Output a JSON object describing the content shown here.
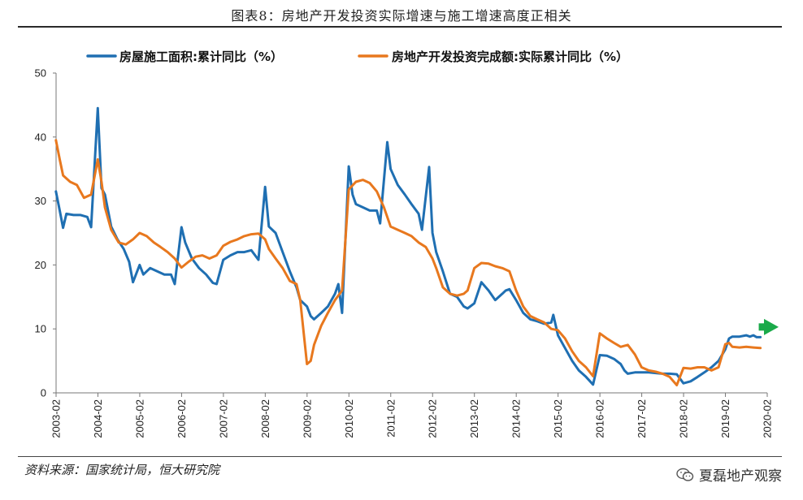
{
  "title": "图表8：房地产开发投资实际增速与施工增速高度正相关",
  "source": "资料来源：国家统计局，恒大研究院",
  "brand": "夏磊地产观察",
  "chart_data": {
    "type": "line",
    "title": "图表8：房地产开发投资实际增速与施工增速高度正相关",
    "xlabel": "",
    "ylabel": "",
    "ylim": [
      0,
      50
    ],
    "yticks": [
      "0",
      "10",
      "20",
      "30",
      "40",
      "50"
    ],
    "categories": [
      "2003-02",
      "2004-02",
      "2005-02",
      "2006-02",
      "2007-02",
      "2008-02",
      "2009-02",
      "2010-02",
      "2011-02",
      "2012-02",
      "2013-02",
      "2014-02",
      "2015-02",
      "2016-02",
      "2017-02",
      "2018-02",
      "2019-02",
      "2020-02"
    ],
    "xrange": [
      2003.083,
      2020.083
    ],
    "legend_position": "top",
    "series": [
      {
        "name": "房屋施工面积:累计同比（%）",
        "color": "#1f6fb2",
        "points": [
          [
            2003.08,
            31.5
          ],
          [
            2003.17,
            28.5
          ],
          [
            2003.25,
            25.8
          ],
          [
            2003.33,
            28.0
          ],
          [
            2003.5,
            27.8
          ],
          [
            2003.67,
            27.8
          ],
          [
            2003.83,
            27.5
          ],
          [
            2003.92,
            25.9
          ],
          [
            2004.08,
            44.5
          ],
          [
            2004.17,
            32.0
          ],
          [
            2004.25,
            31.0
          ],
          [
            2004.4,
            26.0
          ],
          [
            2004.55,
            24.0
          ],
          [
            2004.7,
            22.5
          ],
          [
            2004.83,
            20.5
          ],
          [
            2004.92,
            17.3
          ],
          [
            2005.08,
            20.0
          ],
          [
            2005.17,
            18.5
          ],
          [
            2005.33,
            19.5
          ],
          [
            2005.5,
            19.0
          ],
          [
            2005.67,
            18.5
          ],
          [
            2005.83,
            18.5
          ],
          [
            2005.92,
            17.0
          ],
          [
            2006.08,
            25.9
          ],
          [
            2006.17,
            23.5
          ],
          [
            2006.33,
            21.0
          ],
          [
            2006.5,
            19.5
          ],
          [
            2006.67,
            18.5
          ],
          [
            2006.83,
            17.2
          ],
          [
            2006.92,
            17.0
          ],
          [
            2007.08,
            20.8
          ],
          [
            2007.25,
            21.5
          ],
          [
            2007.42,
            22.0
          ],
          [
            2007.58,
            22.0
          ],
          [
            2007.75,
            22.3
          ],
          [
            2007.92,
            20.8
          ],
          [
            2008.08,
            32.2
          ],
          [
            2008.17,
            26.0
          ],
          [
            2008.33,
            25.0
          ],
          [
            2008.5,
            22.0
          ],
          [
            2008.67,
            19.0
          ],
          [
            2008.83,
            16.5
          ],
          [
            2008.92,
            14.5
          ],
          [
            2009.08,
            13.5
          ],
          [
            2009.17,
            12.0
          ],
          [
            2009.25,
            11.5
          ],
          [
            2009.42,
            12.5
          ],
          [
            2009.58,
            13.5
          ],
          [
            2009.75,
            15.5
          ],
          [
            2009.83,
            17.0
          ],
          [
            2009.92,
            12.5
          ],
          [
            2010.08,
            35.4
          ],
          [
            2010.17,
            31.0
          ],
          [
            2010.25,
            29.5
          ],
          [
            2010.42,
            29.0
          ],
          [
            2010.58,
            28.5
          ],
          [
            2010.75,
            28.5
          ],
          [
            2010.83,
            26.5
          ],
          [
            2011.0,
            39.2
          ],
          [
            2011.08,
            35.0
          ],
          [
            2011.25,
            32.5
          ],
          [
            2011.42,
            31.0
          ],
          [
            2011.58,
            29.5
          ],
          [
            2011.75,
            28.0
          ],
          [
            2011.83,
            25.5
          ],
          [
            2012.0,
            35.3
          ],
          [
            2012.08,
            25.0
          ],
          [
            2012.17,
            22.0
          ],
          [
            2012.33,
            19.0
          ],
          [
            2012.5,
            15.5
          ],
          [
            2012.67,
            15.0
          ],
          [
            2012.83,
            13.5
          ],
          [
            2012.92,
            13.2
          ],
          [
            2013.08,
            14.0
          ],
          [
            2013.25,
            17.3
          ],
          [
            2013.42,
            16.0
          ],
          [
            2013.58,
            14.5
          ],
          [
            2013.75,
            15.5
          ],
          [
            2013.83,
            16.0
          ],
          [
            2013.92,
            16.2
          ],
          [
            2014.08,
            14.5
          ],
          [
            2014.25,
            12.5
          ],
          [
            2014.42,
            11.5
          ],
          [
            2014.58,
            11.2
          ],
          [
            2014.75,
            10.8
          ],
          [
            2014.92,
            11.0
          ],
          [
            2014.97,
            12.2
          ],
          [
            2015.08,
            9.0
          ],
          [
            2015.25,
            7.0
          ],
          [
            2015.42,
            5.0
          ],
          [
            2015.58,
            3.5
          ],
          [
            2015.75,
            2.5
          ],
          [
            2015.92,
            1.3
          ],
          [
            2016.08,
            5.9
          ],
          [
            2016.25,
            5.8
          ],
          [
            2016.42,
            5.3
          ],
          [
            2016.58,
            4.5
          ],
          [
            2016.67,
            3.5
          ],
          [
            2016.75,
            3.0
          ],
          [
            2016.92,
            3.2
          ],
          [
            2017.08,
            3.2
          ],
          [
            2017.25,
            3.2
          ],
          [
            2017.42,
            3.1
          ],
          [
            2017.58,
            3.0
          ],
          [
            2017.75,
            3.0
          ],
          [
            2017.92,
            2.9
          ],
          [
            2018.08,
            1.5
          ],
          [
            2018.25,
            1.8
          ],
          [
            2018.42,
            2.5
          ],
          [
            2018.58,
            3.2
          ],
          [
            2018.75,
            4.0
          ],
          [
            2018.92,
            5.0
          ],
          [
            2019.08,
            6.8
          ],
          [
            2019.17,
            8.5
          ],
          [
            2019.25,
            8.8
          ],
          [
            2019.42,
            8.8
          ],
          [
            2019.58,
            9.0
          ],
          [
            2019.67,
            8.8
          ],
          [
            2019.75,
            9.0
          ],
          [
            2019.83,
            8.7
          ],
          [
            2019.92,
            8.7
          ]
        ]
      },
      {
        "name": "房地产开发投资完成额:实际累计同比（%）",
        "color": "#e8781e",
        "points": [
          [
            2003.08,
            39.5
          ],
          [
            2003.17,
            36.5
          ],
          [
            2003.25,
            34.0
          ],
          [
            2003.42,
            33.0
          ],
          [
            2003.58,
            32.5
          ],
          [
            2003.75,
            30.5
          ],
          [
            2003.92,
            31.0
          ],
          [
            2004.08,
            36.5
          ],
          [
            2004.17,
            33.0
          ],
          [
            2004.25,
            29.0
          ],
          [
            2004.4,
            25.5
          ],
          [
            2004.58,
            23.5
          ],
          [
            2004.75,
            23.2
          ],
          [
            2004.92,
            24.0
          ],
          [
            2005.08,
            25.0
          ],
          [
            2005.25,
            24.5
          ],
          [
            2005.42,
            23.5
          ],
          [
            2005.58,
            22.8
          ],
          [
            2005.75,
            22.0
          ],
          [
            2005.92,
            21.0
          ],
          [
            2006.08,
            19.6
          ],
          [
            2006.25,
            20.5
          ],
          [
            2006.42,
            21.3
          ],
          [
            2006.58,
            21.5
          ],
          [
            2006.75,
            21.0
          ],
          [
            2006.92,
            21.5
          ],
          [
            2007.08,
            23.0
          ],
          [
            2007.25,
            23.6
          ],
          [
            2007.42,
            24.0
          ],
          [
            2007.58,
            24.5
          ],
          [
            2007.75,
            24.8
          ],
          [
            2007.92,
            24.9
          ],
          [
            2008.08,
            24.0
          ],
          [
            2008.17,
            22.5
          ],
          [
            2008.33,
            21.0
          ],
          [
            2008.5,
            19.5
          ],
          [
            2008.67,
            17.5
          ],
          [
            2008.83,
            17.0
          ],
          [
            2008.92,
            14.5
          ],
          [
            2009.08,
            4.5
          ],
          [
            2009.17,
            5.0
          ],
          [
            2009.25,
            7.5
          ],
          [
            2009.42,
            10.5
          ],
          [
            2009.58,
            12.5
          ],
          [
            2009.75,
            14.5
          ],
          [
            2009.92,
            16.0
          ],
          [
            2010.08,
            31.8
          ],
          [
            2010.25,
            33.0
          ],
          [
            2010.42,
            33.3
          ],
          [
            2010.58,
            32.8
          ],
          [
            2010.75,
            31.5
          ],
          [
            2010.92,
            29.0
          ],
          [
            2011.08,
            26.0
          ],
          [
            2011.25,
            25.5
          ],
          [
            2011.42,
            25.0
          ],
          [
            2011.58,
            24.5
          ],
          [
            2011.75,
            23.5
          ],
          [
            2011.92,
            22.8
          ],
          [
            2012.08,
            21.0
          ],
          [
            2012.17,
            19.5
          ],
          [
            2012.33,
            16.5
          ],
          [
            2012.5,
            15.5
          ],
          [
            2012.67,
            15.2
          ],
          [
            2012.83,
            15.5
          ],
          [
            2012.92,
            16.0
          ],
          [
            2013.08,
            19.5
          ],
          [
            2013.25,
            20.3
          ],
          [
            2013.42,
            20.2
          ],
          [
            2013.58,
            19.8
          ],
          [
            2013.75,
            19.5
          ],
          [
            2013.92,
            19.0
          ],
          [
            2014.08,
            16.0
          ],
          [
            2014.25,
            13.5
          ],
          [
            2014.42,
            12.0
          ],
          [
            2014.58,
            11.5
          ],
          [
            2014.75,
            11.0
          ],
          [
            2014.92,
            10.0
          ],
          [
            2015.08,
            9.8
          ],
          [
            2015.25,
            8.5
          ],
          [
            2015.42,
            6.5
          ],
          [
            2015.58,
            5.0
          ],
          [
            2015.75,
            4.0
          ],
          [
            2015.92,
            2.6
          ],
          [
            2016.08,
            9.3
          ],
          [
            2016.25,
            8.5
          ],
          [
            2016.42,
            7.8
          ],
          [
            2016.58,
            7.2
          ],
          [
            2016.75,
            7.5
          ],
          [
            2016.92,
            6.0
          ],
          [
            2017.08,
            4.0
          ],
          [
            2017.25,
            3.5
          ],
          [
            2017.42,
            3.3
          ],
          [
            2017.58,
            3.0
          ],
          [
            2017.75,
            2.5
          ],
          [
            2017.92,
            1.2
          ],
          [
            2018.08,
            3.9
          ],
          [
            2018.25,
            3.8
          ],
          [
            2018.42,
            4.0
          ],
          [
            2018.58,
            4.0
          ],
          [
            2018.75,
            3.5
          ],
          [
            2018.92,
            4.0
          ],
          [
            2019.08,
            7.6
          ],
          [
            2019.17,
            7.8
          ],
          [
            2019.25,
            7.2
          ],
          [
            2019.42,
            7.1
          ],
          [
            2019.58,
            7.2
          ],
          [
            2019.75,
            7.1
          ],
          [
            2019.92,
            7.0
          ]
        ]
      }
    ],
    "annotations": [
      {
        "type": "arrow",
        "color": "#1aaa4a",
        "direction": "right",
        "at_x": 2019.88,
        "at_y": 10.3,
        "to_x": 2021.2
      }
    ]
  }
}
